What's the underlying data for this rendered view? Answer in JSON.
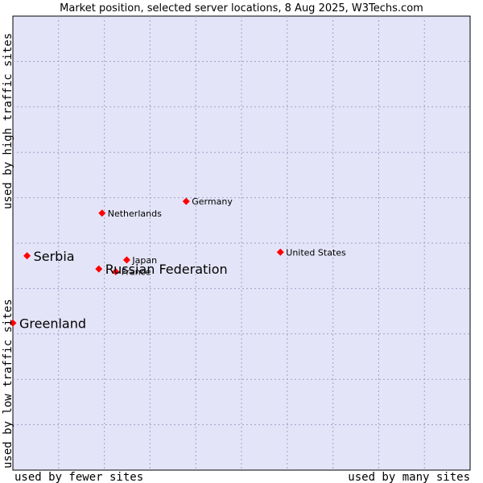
{
  "chart_data": {
    "type": "scatter",
    "title": "Market position, selected server locations, 8 Aug 2025, W3Techs.com",
    "xlabel_left": "used by fewer sites",
    "xlabel_right": "used by many sites",
    "ylabel_bottom": "used by low traffic sites",
    "ylabel_top": "used by high traffic sites",
    "xlim": [
      0,
      100
    ],
    "ylim": [
      0,
      100
    ],
    "grid": true,
    "colors": {
      "plot_bg": "#e4e4f8",
      "grid": "#a0a0c8",
      "marker": "#ff0000",
      "border": "#000000"
    },
    "points": [
      {
        "label": "United States",
        "x": 58.5,
        "y": 48.0,
        "size": "small"
      },
      {
        "label": "Germany",
        "x": 37.9,
        "y": 59.2,
        "size": "small"
      },
      {
        "label": "Netherlands",
        "x": 19.5,
        "y": 56.6,
        "size": "small"
      },
      {
        "label": "Japan",
        "x": 24.9,
        "y": 46.3,
        "size": "small"
      },
      {
        "label": "France",
        "x": 22.5,
        "y": 43.7,
        "size": "small"
      },
      {
        "label": "Russian Federation",
        "x": 18.8,
        "y": 44.3,
        "size": "large"
      },
      {
        "label": "Serbia",
        "x": 3.1,
        "y": 47.2,
        "size": "large"
      },
      {
        "label": "Greenland",
        "x": 0.0,
        "y": 32.4,
        "size": "large"
      }
    ]
  }
}
